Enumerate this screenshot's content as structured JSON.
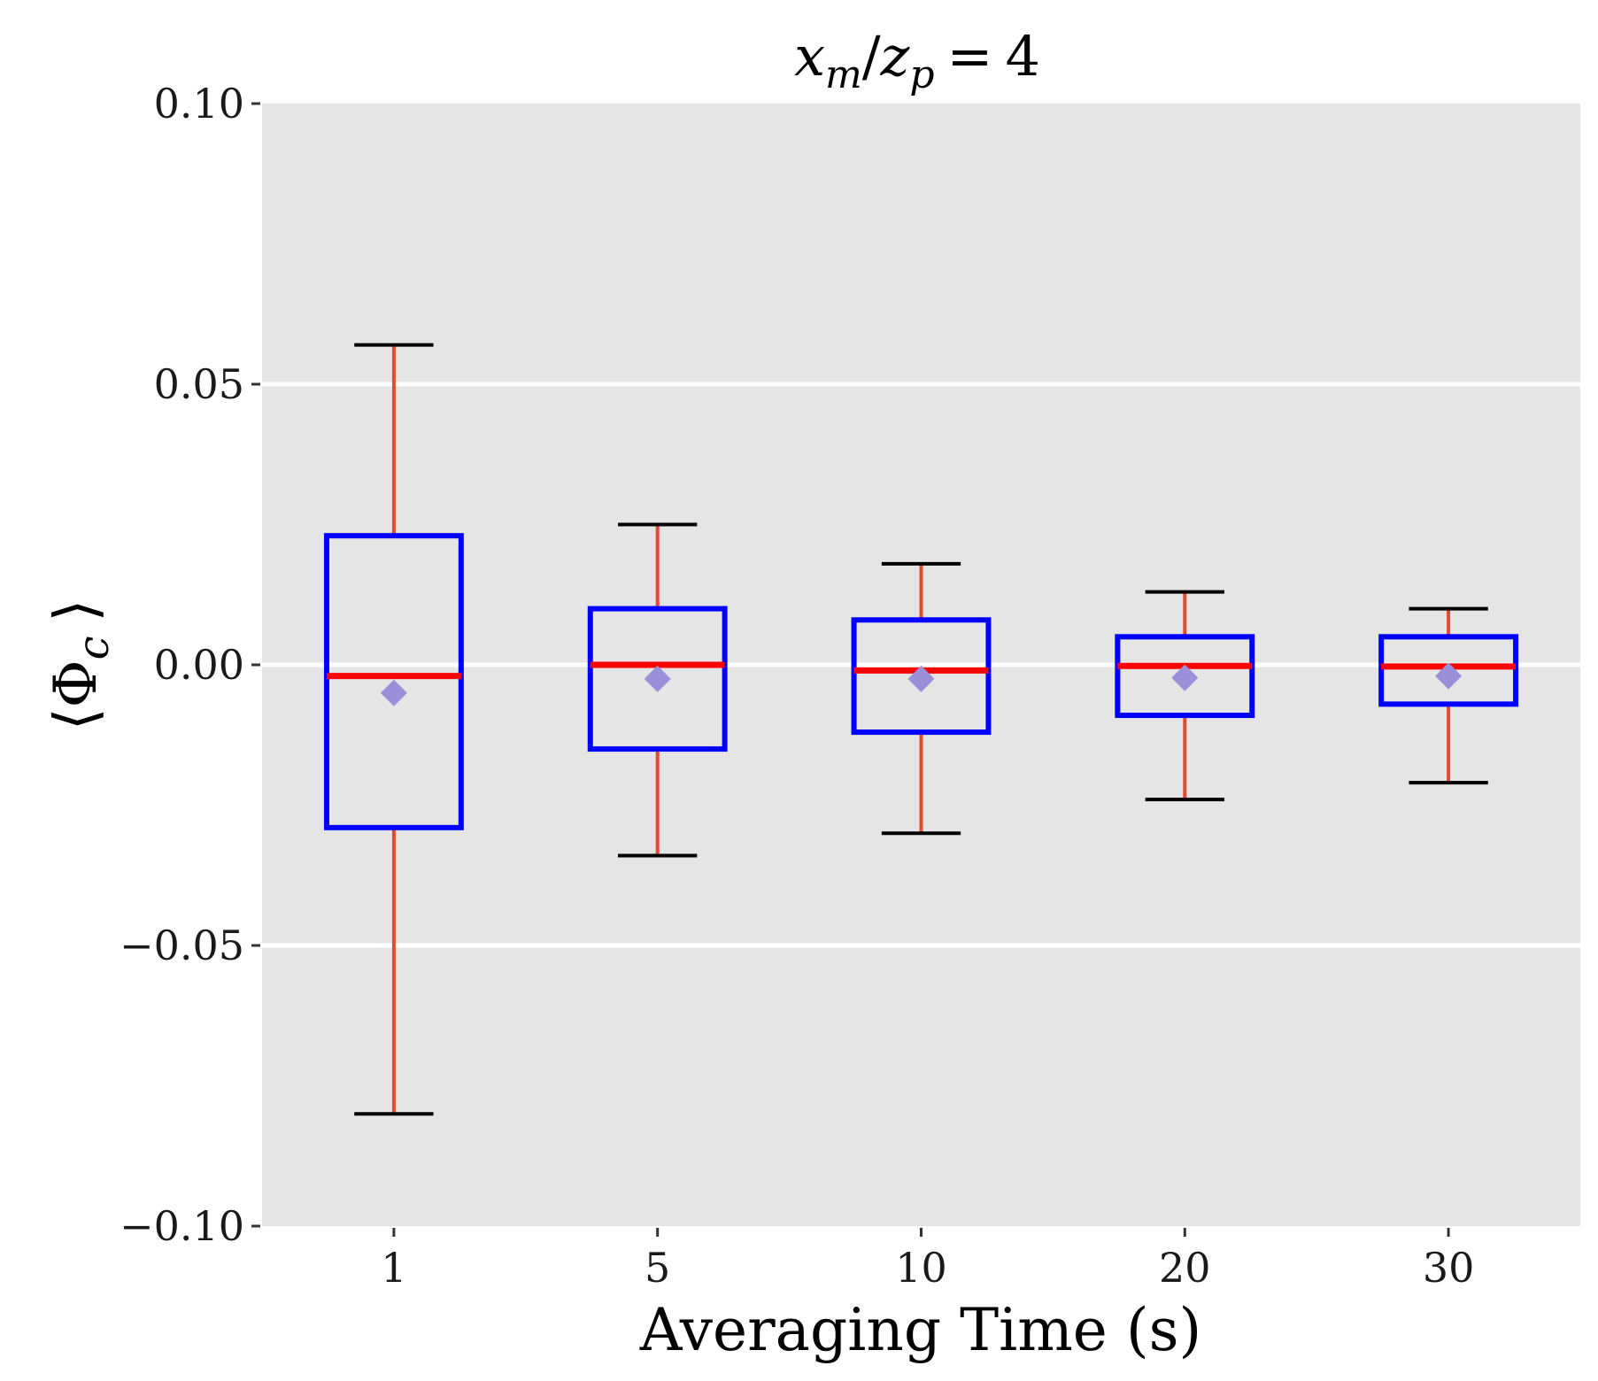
{
  "chart_data": {
    "type": "box",
    "title": "x_m/z_p = 4",
    "title_parts": {
      "lhs_var": "x",
      "lhs_sub": "m",
      "slash": "/",
      "rhs_var": "z",
      "rhs_sub": "p",
      "equals": "=",
      "value": "4"
    },
    "xlabel": "Averaging Time (s)",
    "ylabel": "⟨Φc⟩",
    "ylabel_parts": {
      "open": "⟨",
      "symbol": "Φ",
      "sub": "c",
      "close": "⟩"
    },
    "ylim": [
      -0.1,
      0.1
    ],
    "yticks": [
      -0.1,
      -0.05,
      0.0,
      0.05,
      0.1
    ],
    "ytick_labels": [
      "−0.10",
      "−0.05",
      "0.00",
      "0.05",
      "0.10"
    ],
    "grid": "horizontal",
    "categories": [
      "1",
      "5",
      "10",
      "20",
      "30"
    ],
    "boxes": [
      {
        "category": "1",
        "whisker_low": -0.08,
        "q1": -0.029,
        "median": -0.002,
        "q3": 0.023,
        "whisker_high": 0.057,
        "mean": -0.005
      },
      {
        "category": "5",
        "whisker_low": -0.034,
        "q1": -0.015,
        "median": 0.0,
        "q3": 0.01,
        "whisker_high": 0.025,
        "mean": -0.0025
      },
      {
        "category": "10",
        "whisker_low": -0.03,
        "q1": -0.012,
        "median": -0.001,
        "q3": 0.008,
        "whisker_high": 0.018,
        "mean": -0.0025
      },
      {
        "category": "20",
        "whisker_low": -0.024,
        "q1": -0.009,
        "median": -0.0002,
        "q3": 0.005,
        "whisker_high": 0.013,
        "mean": -0.0023
      },
      {
        "category": "30",
        "whisker_low": -0.021,
        "q1": -0.007,
        "median": -0.0003,
        "q3": 0.005,
        "whisker_high": 0.01,
        "mean": -0.002
      }
    ],
    "colors": {
      "panel": "#e5e5e5",
      "grid": "#ffffff",
      "box": "#0000ff",
      "median": "#ff0000",
      "whisker": "#e34a33",
      "cap": "#000000",
      "mean": "#9a8fd8"
    }
  }
}
